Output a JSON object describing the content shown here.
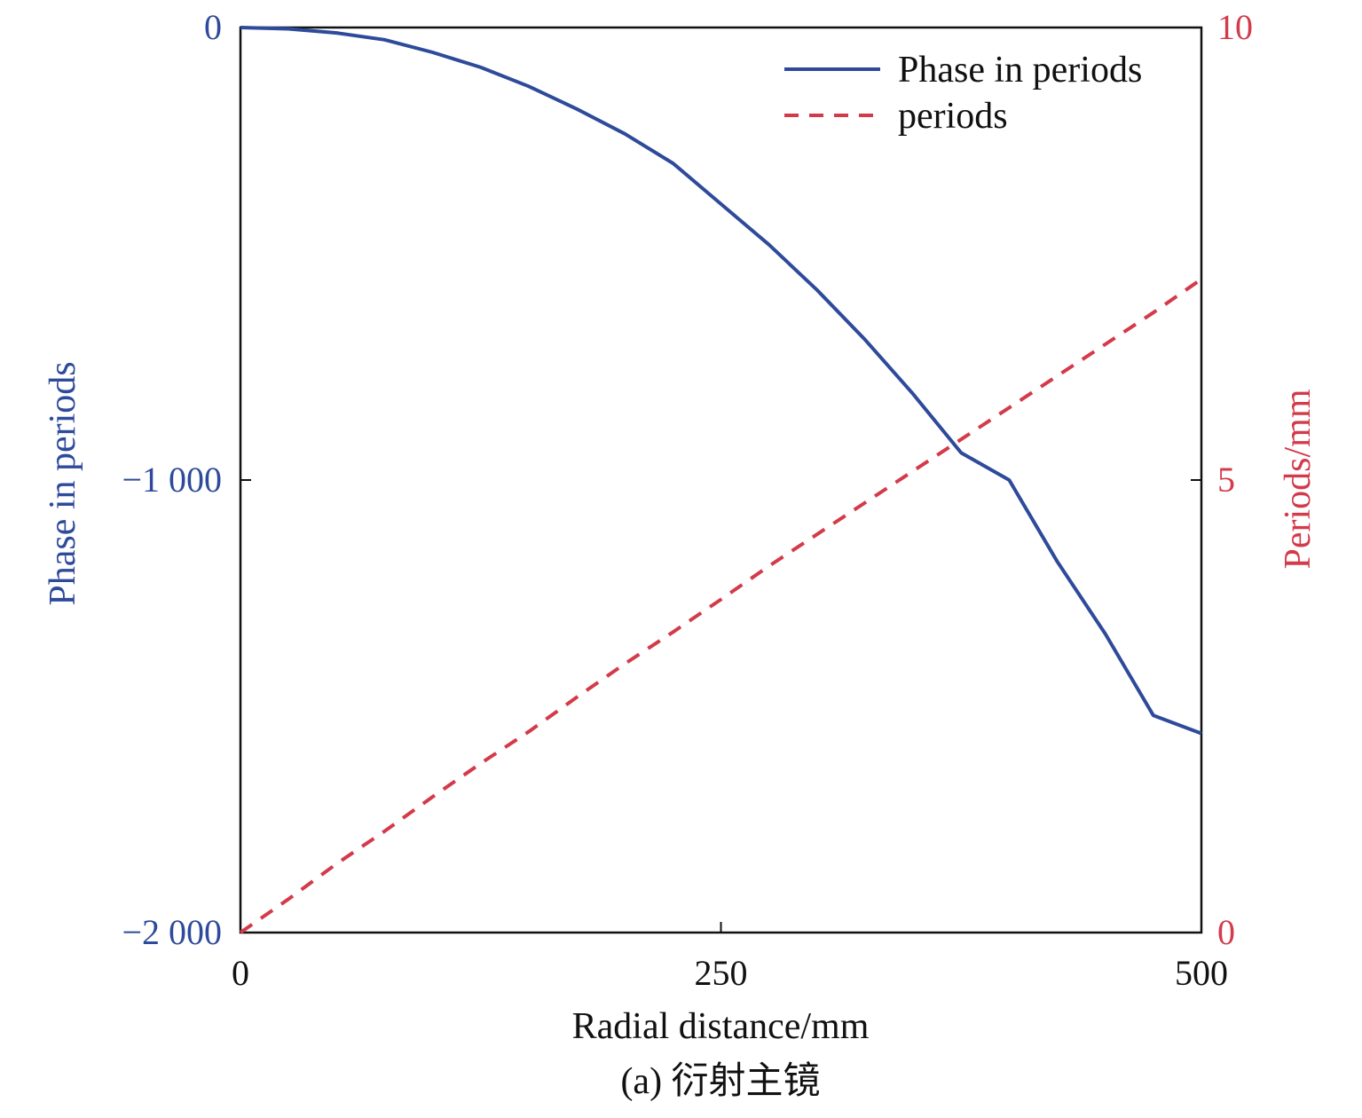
{
  "chart_data": {
    "type": "line",
    "x_axis": {
      "label": "Radial distance/mm",
      "range": [
        0,
        500
      ],
      "ticks": [
        0,
        250,
        500
      ],
      "tick_labels": [
        "0",
        "250",
        "500"
      ]
    },
    "y_left_axis": {
      "label": "Phase in periods",
      "range": [
        -2000,
        0
      ],
      "ticks": [
        0,
        -1000,
        -2000
      ],
      "tick_labels": [
        "0",
        "−1 000",
        "−2 000"
      ],
      "color": "#2e4a9a"
    },
    "y_right_axis": {
      "label": "Periods/mm",
      "range": [
        0,
        10
      ],
      "ticks": [
        10,
        5,
        0
      ],
      "tick_labels": [
        "10",
        "5",
        "0"
      ],
      "color": "#d33a4a"
    },
    "series": [
      {
        "name": "Phase in periods",
        "axis": "left",
        "style": "solid",
        "color": "#2e4a9a",
        "x": [
          0,
          25,
          50,
          75,
          100,
          125,
          150,
          175,
          200,
          225,
          250,
          275,
          300,
          325,
          350,
          375,
          400,
          425,
          450,
          475,
          500
        ],
        "y": [
          0,
          -3,
          -12,
          -27,
          -55,
          -88,
          -130,
          -180,
          -235,
          -300,
          -390,
          -480,
          -580,
          -690,
          -810,
          -940,
          -1000,
          -1180,
          -1340,
          -1520,
          -1560
        ]
      },
      {
        "name": "periods",
        "axis": "right",
        "style": "dashed",
        "color": "#d33a4a",
        "x": [
          0,
          25,
          50,
          75,
          100,
          125,
          150,
          175,
          200,
          225,
          250,
          275,
          300,
          325,
          350,
          375,
          400,
          425,
          450,
          475,
          500
        ],
        "y": [
          0,
          0.37,
          0.76,
          1.12,
          1.5,
          1.87,
          2.22,
          2.6,
          2.97,
          3.32,
          3.68,
          4.05,
          4.4,
          4.75,
          5.1,
          5.45,
          5.8,
          6.15,
          6.5,
          6.85,
          7.22
        ]
      }
    ],
    "legend": {
      "placement": "top-right",
      "entries": [
        "Phase in periods",
        "periods"
      ]
    },
    "caption": "(a) 衍射主镜"
  }
}
